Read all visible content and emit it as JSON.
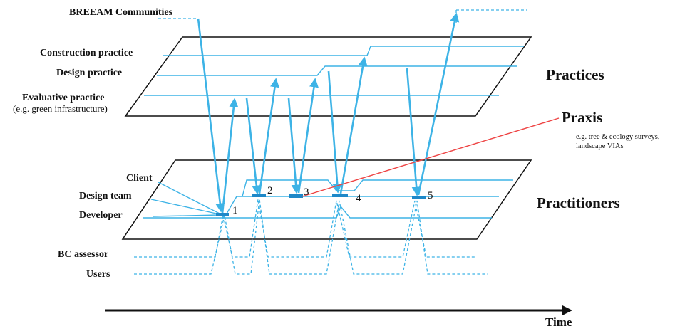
{
  "colors": {
    "line": "#3db3e6",
    "frame": "#111111",
    "praxis": "#ee4444",
    "text": "#111111"
  },
  "labels": {
    "breeam": "BREEAM Communities",
    "construction": "Construction practice",
    "design": "Design practice",
    "evaluative": "Evaluative practice",
    "evaluative_sub": "(e.g. green infrastructure)",
    "practices": "Practices",
    "praxis": "Praxis",
    "praxis_sub1": "e.g. tree & ecology surveys,",
    "praxis_sub2": "landscape VIAs",
    "client": "Client",
    "design_team": "Design team",
    "developer": "Developer",
    "practitioners": "Practitioners",
    "bc_assessor": "BC assessor",
    "users": "Users",
    "time": "Time"
  },
  "events": [
    "1",
    "2",
    "3",
    "4",
    "5"
  ]
}
